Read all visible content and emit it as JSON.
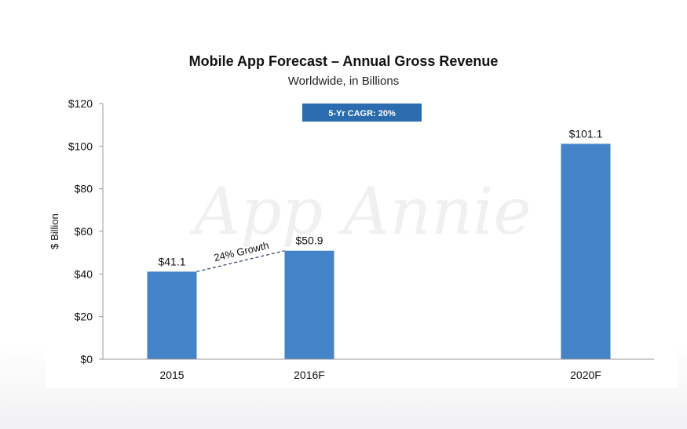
{
  "chart_data": {
    "type": "bar",
    "title": "Mobile App Forecast – Annual Gross Revenue",
    "subtitle": "Worldwide, in Billions",
    "ylabel": "$ Billion",
    "xlabel": "",
    "categories": [
      "2015",
      "2016F",
      "2020F"
    ],
    "values": [
      41.1,
      50.9,
      101.1
    ],
    "data_labels": [
      "$41.1",
      "$50.9",
      "$101.1"
    ],
    "ylim": [
      0,
      120
    ],
    "yticks": [
      0,
      20,
      40,
      60,
      80,
      100,
      120
    ],
    "ytick_labels": [
      "$0",
      "$20",
      "$40",
      "$60",
      "$80",
      "$100",
      "$120"
    ],
    "bar_color": "#4383c7",
    "grid": false,
    "annotations": {
      "growth_label": "24% Growth",
      "cagr_label": "5-Yr CAGR: 20%",
      "cagr_color": "#2a6cae"
    },
    "watermark": "App Annie"
  }
}
